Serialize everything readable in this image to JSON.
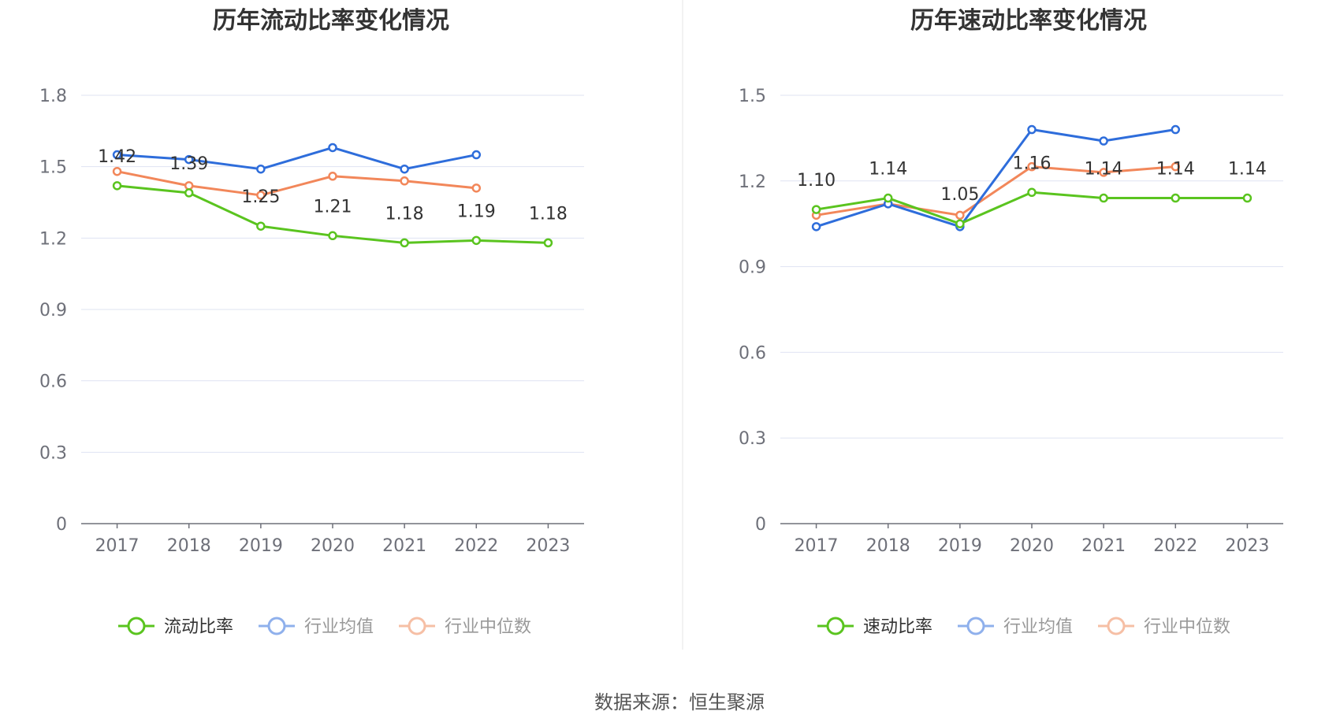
{
  "source_label": "数据来源：恒生聚源",
  "colors": {
    "green": "#5ac41f",
    "blue": "#2e6ddb",
    "orange": "#f2875a",
    "legend_blue": "#8fb0ec",
    "legend_orange": "#f6bfa5",
    "grid": "#dfe3f2",
    "axis": "#6e7079"
  },
  "chart_data": [
    {
      "type": "line",
      "title": "历年流动比率变化情况",
      "categories": [
        "2017",
        "2018",
        "2019",
        "2020",
        "2021",
        "2022",
        "2023"
      ],
      "ylim": [
        0,
        1.8
      ],
      "yticks": [
        0,
        0.3,
        0.6,
        0.9,
        1.2,
        1.5,
        1.8
      ],
      "ytick_labels": [
        "0",
        "0.3",
        "0.6",
        "0.9",
        "1.2",
        "1.5",
        "1.8"
      ],
      "grid": true,
      "legend_position": "bottom",
      "series": [
        {
          "name": "流动比率",
          "color_key": "green",
          "values": [
            1.42,
            1.39,
            1.25,
            1.21,
            1.18,
            1.19,
            1.18
          ],
          "labels": [
            "1.42",
            "1.39",
            "1.25",
            "1.21",
            "1.18",
            "1.19",
            "1.18"
          ]
        },
        {
          "name": "行业均值",
          "color_key": "blue",
          "values": [
            1.55,
            1.53,
            1.49,
            1.58,
            1.49,
            1.55,
            null
          ]
        },
        {
          "name": "行业中位数",
          "color_key": "orange",
          "values": [
            1.48,
            1.42,
            1.38,
            1.46,
            1.44,
            1.41,
            null
          ]
        }
      ]
    },
    {
      "type": "line",
      "title": "历年速动比率变化情况",
      "categories": [
        "2017",
        "2018",
        "2019",
        "2020",
        "2021",
        "2022",
        "2023"
      ],
      "ylim": [
        0,
        1.5
      ],
      "yticks": [
        0,
        0.3,
        0.6,
        0.9,
        1.2,
        1.5
      ],
      "ytick_labels": [
        "0",
        "0.3",
        "0.6",
        "0.9",
        "1.2",
        "1.5"
      ],
      "grid": true,
      "legend_position": "bottom",
      "series": [
        {
          "name": "速动比率",
          "color_key": "green",
          "values": [
            1.1,
            1.14,
            1.05,
            1.16,
            1.14,
            1.14,
            1.14
          ],
          "labels": [
            "1.10",
            "1.14",
            "1.05",
            "1.16",
            "1.14",
            "1.14",
            "1.14"
          ]
        },
        {
          "name": "行业均值",
          "color_key": "blue",
          "values": [
            1.04,
            1.12,
            1.04,
            1.38,
            1.34,
            1.38,
            null
          ]
        },
        {
          "name": "行业中位数",
          "color_key": "orange",
          "values": [
            1.08,
            1.12,
            1.08,
            1.25,
            1.23,
            1.25,
            null
          ]
        }
      ]
    }
  ]
}
